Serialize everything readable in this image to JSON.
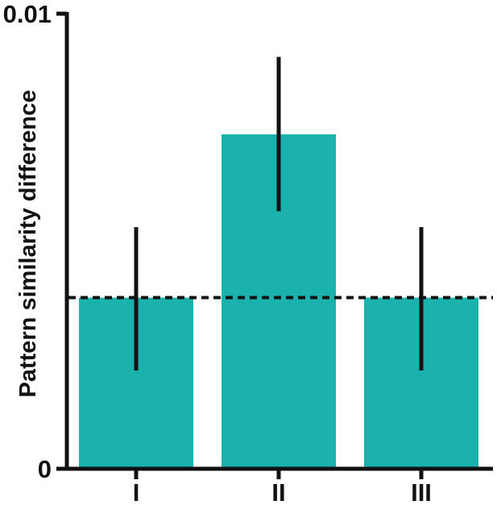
{
  "chart_data": {
    "type": "bar",
    "title": "",
    "xlabel": "",
    "ylabel": "Pattern similarity difference",
    "categories": [
      "I",
      "II",
      "III"
    ],
    "values": [
      0.00376,
      0.00735,
      0.00376
    ],
    "error_low": [
      0.00216,
      0.00566,
      0.00216
    ],
    "error_high": [
      0.00531,
      0.00905,
      0.00531
    ],
    "reference_line": 0.00376,
    "ylim": [
      0,
      0.01
    ],
    "y_ticks": [
      {
        "value": 0,
        "label": "0"
      },
      {
        "value": 0.01,
        "label": "0.01"
      }
    ],
    "grid": false,
    "legend": "none",
    "colors": {
      "bar": "#1bb2ae",
      "axis": "#111111",
      "error_bar": "#111111",
      "reference_line": "#111111"
    }
  }
}
